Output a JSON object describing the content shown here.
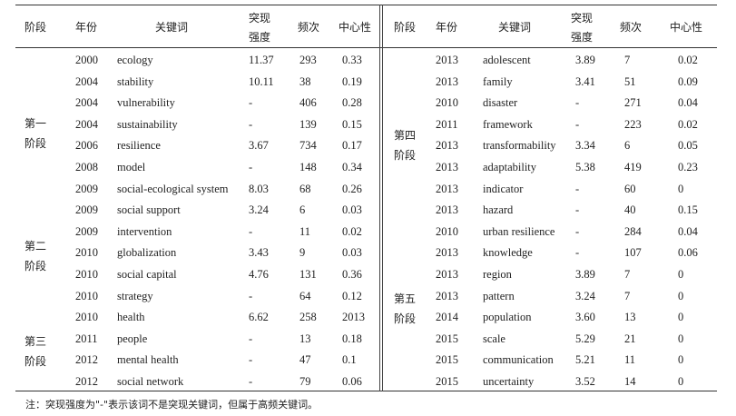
{
  "headers": {
    "stage": "阶段",
    "year": "年份",
    "keyword": "关键词",
    "strength_1": "突现",
    "strength_2": "强度",
    "freq": "频次",
    "centrality": "中心性"
  },
  "left": {
    "stages": [
      {
        "line1": "第一",
        "line2": "阶段"
      },
      {
        "line1": "第二",
        "line2": "阶段"
      },
      {
        "line1": "第三",
        "line2": "阶段"
      }
    ],
    "rows": [
      {
        "year": "2000",
        "keyword": "ecology",
        "strength": "11.37",
        "freq": "293",
        "centrality": "0.33"
      },
      {
        "year": "2004",
        "keyword": "stability",
        "strength": "10.11",
        "freq": "38",
        "centrality": "0.19"
      },
      {
        "year": "2004",
        "keyword": "vulnerability",
        "strength": "-",
        "freq": "406",
        "centrality": "0.28"
      },
      {
        "year": "2004",
        "keyword": "sustainability",
        "strength": "-",
        "freq": "139",
        "centrality": "0.15"
      },
      {
        "year": "2006",
        "keyword": "resilience",
        "strength": "3.67",
        "freq": "734",
        "centrality": "0.17"
      },
      {
        "year": "2008",
        "keyword": "model",
        "strength": "-",
        "freq": "148",
        "centrality": "0.34"
      },
      {
        "year": "2009",
        "keyword": "social-ecological system",
        "strength": "8.03",
        "freq": "68",
        "centrality": "0.26"
      },
      {
        "year": "2009",
        "keyword": "social support",
        "strength": "3.24",
        "freq": "6",
        "centrality": "0.03"
      },
      {
        "year": "2009",
        "keyword": "intervention",
        "strength": "-",
        "freq": "11",
        "centrality": "0.02"
      },
      {
        "year": "2010",
        "keyword": "globalization",
        "strength": "3.43",
        "freq": "9",
        "centrality": "0.03"
      },
      {
        "year": "2010",
        "keyword": "social capital",
        "strength": "4.76",
        "freq": "131",
        "centrality": "0.36"
      },
      {
        "year": "2010",
        "keyword": "strategy",
        "strength": "-",
        "freq": "64",
        "centrality": "0.12"
      },
      {
        "year": "2010",
        "keyword": "health",
        "strength": "6.62",
        "freq": "258",
        "centrality": "2013"
      },
      {
        "year": "2011",
        "keyword": "people",
        "strength": "-",
        "freq": "13",
        "centrality": "0.18"
      },
      {
        "year": "2012",
        "keyword": "mental health",
        "strength": "-",
        "freq": "47",
        "centrality": "0.1"
      },
      {
        "year": "2012",
        "keyword": "social network",
        "strength": "-",
        "freq": "79",
        "centrality": "0.06"
      }
    ]
  },
  "right": {
    "stages": [
      {
        "line1": "第四",
        "line2": "阶段"
      },
      {
        "line1": "第五",
        "line2": "阶段"
      }
    ],
    "rows": [
      {
        "year": "2013",
        "keyword": "adolescent",
        "strength": "3.89",
        "freq": "7",
        "centrality": "0.02"
      },
      {
        "year": "2013",
        "keyword": "family",
        "strength": "3.41",
        "freq": "51",
        "centrality": "0.09"
      },
      {
        "year": "2010",
        "keyword": "disaster",
        "strength": "-",
        "freq": "271",
        "centrality": "0.04"
      },
      {
        "year": "2011",
        "keyword": "framework",
        "strength": "-",
        "freq": "223",
        "centrality": "0.02"
      },
      {
        "year": "2013",
        "keyword": "transformability",
        "strength": "3.34",
        "freq": "6",
        "centrality": "0.05"
      },
      {
        "year": "2013",
        "keyword": "adaptability",
        "strength": "5.38",
        "freq": "419",
        "centrality": "0.23"
      },
      {
        "year": "2013",
        "keyword": "indicator",
        "strength": "-",
        "freq": "60",
        "centrality": "0"
      },
      {
        "year": "2013",
        "keyword": "hazard",
        "strength": "-",
        "freq": "40",
        "centrality": "0.15"
      },
      {
        "year": "2010",
        "keyword": "urban resilience",
        "strength": "-",
        "freq": "284",
        "centrality": "0.04"
      },
      {
        "year": "2013",
        "keyword": "knowledge",
        "strength": "-",
        "freq": "107",
        "centrality": "0.06"
      },
      {
        "year": "2013",
        "keyword": "region",
        "strength": "3.89",
        "freq": "7",
        "centrality": "0"
      },
      {
        "year": "2013",
        "keyword": "pattern",
        "strength": "3.24",
        "freq": "7",
        "centrality": "0"
      },
      {
        "year": "2014",
        "keyword": "population",
        "strength": "3.60",
        "freq": "13",
        "centrality": "0"
      },
      {
        "year": "2015",
        "keyword": "scale",
        "strength": "5.29",
        "freq": "21",
        "centrality": "0"
      },
      {
        "year": "2015",
        "keyword": "communication",
        "strength": "5.21",
        "freq": "11",
        "centrality": "0"
      },
      {
        "year": "2015",
        "keyword": "uncertainty",
        "strength": "3.52",
        "freq": "14",
        "centrality": "0"
      }
    ]
  },
  "note": "注：突现强度为\"-\"表示该词不是突现关键词，但属于高频关键词。"
}
